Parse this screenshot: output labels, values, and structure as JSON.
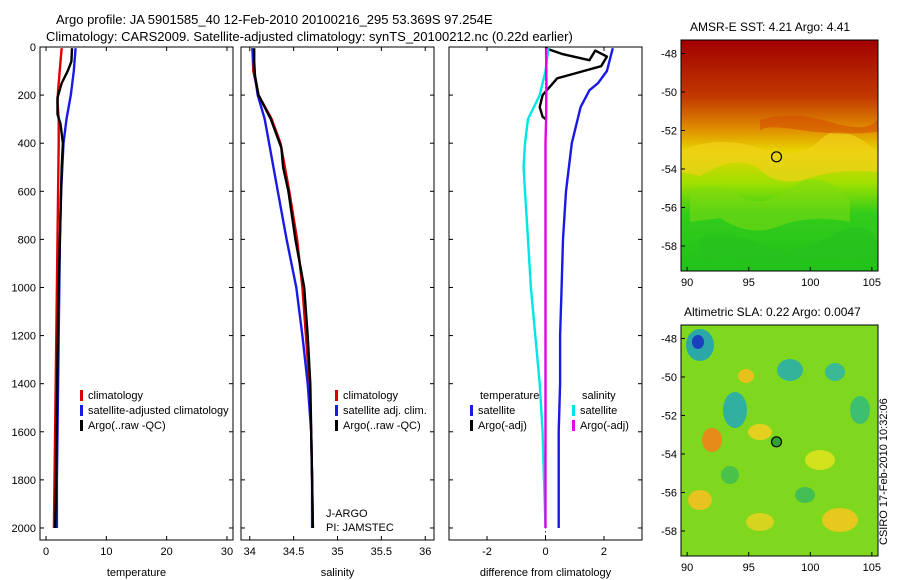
{
  "header": {
    "title_line1": "Argo profile: JA 5901585_40 12-Feb-2010 20100216_295 53.369S 97.254E",
    "title_line2": "Climatology: CARS2009. Satellite-adjusted climatology: synTS_20100212.nc (0.22d earlier)"
  },
  "footer_stamp": "CSIRO 17-Feb-2010 10:32:06",
  "colors": {
    "climatology": "#dd0000",
    "satellite": "#1a1ae6",
    "argo": "#000000",
    "satellite_salinity": "#00e5e5",
    "argo_salinity": "#e600e6"
  },
  "chart_data": [
    {
      "type": "line",
      "xlabel": "temperature",
      "ylim": [
        2050,
        0
      ],
      "xlim": [
        -1,
        31
      ],
      "x_ticks": [
        0,
        10,
        20,
        30
      ],
      "y_ticks": [
        0,
        200,
        400,
        600,
        800,
        1000,
        1200,
        1400,
        1600,
        1800,
        2000
      ],
      "legend": [
        "climatology",
        "satellite-adjusted climatology",
        "Argo(..raw -QC)"
      ],
      "series": [
        {
          "name": "climatology",
          "color_key": "climatology",
          "points": [
            [
              2.6,
              5
            ],
            [
              2.4,
              60
            ],
            [
              2.2,
              120
            ],
            [
              2.0,
              180
            ],
            [
              1.9,
              230
            ],
            [
              2.1,
              300
            ],
            [
              2.1,
              400
            ],
            [
              2.0,
              600
            ],
            [
              1.9,
              800
            ],
            [
              1.8,
              1000
            ],
            [
              1.7,
              1200
            ],
            [
              1.6,
              1400
            ],
            [
              1.5,
              1600
            ],
            [
              1.4,
              1800
            ],
            [
              1.3,
              2000
            ]
          ]
        },
        {
          "name": "satellite-adjusted climatology",
          "color_key": "satellite",
          "points": [
            [
              4.9,
              5
            ],
            [
              4.6,
              100
            ],
            [
              4.1,
              200
            ],
            [
              3.4,
              300
            ],
            [
              2.9,
              400
            ],
            [
              2.5,
              600
            ],
            [
              2.3,
              800
            ],
            [
              2.2,
              1000
            ],
            [
              2.1,
              1200
            ],
            [
              2.0,
              1400
            ],
            [
              1.9,
              1600
            ],
            [
              1.8,
              1800
            ],
            [
              1.8,
              2000
            ]
          ]
        },
        {
          "name": "Argo(..raw -QC)",
          "color_key": "argo",
          "points": [
            [
              4.3,
              5
            ],
            [
              4.2,
              60
            ],
            [
              3.6,
              100
            ],
            [
              2.6,
              150
            ],
            [
              1.9,
              210
            ],
            [
              1.9,
              280
            ],
            [
              2.4,
              320
            ],
            [
              2.8,
              400
            ],
            [
              2.6,
              500
            ],
            [
              2.4,
              700
            ],
            [
              2.2,
              900
            ],
            [
              2.0,
              1100
            ],
            [
              1.9,
              1300
            ],
            [
              1.8,
              1500
            ],
            [
              1.7,
              1700
            ],
            [
              1.6,
              1900
            ],
            [
              1.5,
              2000
            ]
          ]
        }
      ]
    },
    {
      "type": "line",
      "xlabel": "salinity",
      "ylim": [
        2050,
        0
      ],
      "xlim": [
        33.9,
        36.1
      ],
      "x_ticks": [
        34,
        34.5,
        35,
        35.5,
        36
      ],
      "legend": [
        "climatology",
        "satellite adj. clim.",
        "Argo(..raw -QC)"
      ],
      "annotations": [
        "J-ARGO",
        "PI: JAMSTEC"
      ],
      "series": [
        {
          "name": "climatology",
          "color_key": "climatology",
          "points": [
            [
              34.03,
              5
            ],
            [
              34.04,
              100
            ],
            [
              34.1,
              200
            ],
            [
              34.25,
              300
            ],
            [
              34.35,
              400
            ],
            [
              34.45,
              600
            ],
            [
              34.54,
              800
            ],
            [
              34.6,
              1000
            ],
            [
              34.64,
              1200
            ],
            [
              34.68,
              1400
            ],
            [
              34.7,
              1600
            ],
            [
              34.71,
              1800
            ],
            [
              34.72,
              2000
            ]
          ]
        },
        {
          "name": "satellite adj. clim.",
          "color_key": "satellite",
          "points": [
            [
              34.03,
              5
            ],
            [
              34.05,
              100
            ],
            [
              34.09,
              200
            ],
            [
              34.17,
              300
            ],
            [
              34.22,
              400
            ],
            [
              34.32,
              600
            ],
            [
              34.42,
              800
            ],
            [
              34.53,
              1000
            ],
            [
              34.6,
              1200
            ],
            [
              34.66,
              1400
            ],
            [
              34.7,
              1600
            ],
            [
              34.71,
              1800
            ],
            [
              34.71,
              2000
            ]
          ]
        },
        {
          "name": "Argo(..raw -QC)",
          "color_key": "argo",
          "points": [
            [
              34.05,
              5
            ],
            [
              34.05,
              60
            ],
            [
              34.06,
              120
            ],
            [
              34.1,
              200
            ],
            [
              34.24,
              300
            ],
            [
              34.36,
              420
            ],
            [
              34.38,
              500
            ],
            [
              34.44,
              600
            ],
            [
              34.52,
              800
            ],
            [
              34.62,
              1000
            ],
            [
              34.66,
              1200
            ],
            [
              34.69,
              1400
            ],
            [
              34.7,
              1600
            ],
            [
              34.71,
              1800
            ],
            [
              34.72,
              2000
            ]
          ]
        }
      ]
    },
    {
      "type": "line",
      "xlabel": "difference from climatology",
      "ylim": [
        2050,
        0
      ],
      "xlim": [
        -3.3,
        3.3
      ],
      "x_ticks": [
        -2,
        0,
        2
      ],
      "legend": [
        "temperature",
        "satellite",
        "Argo(-adj)",
        "salinity",
        "satellite",
        "Argo(-adj)"
      ],
      "series": [
        {
          "name": "satellite",
          "color_key": "satellite",
          "points": [
            [
              2.3,
              5
            ],
            [
              2.1,
              100
            ],
            [
              1.8,
              150
            ],
            [
              1.5,
              180
            ],
            [
              1.2,
              250
            ],
            [
              0.9,
              400
            ],
            [
              0.8,
              500
            ],
            [
              0.7,
              600
            ],
            [
              0.6,
              800
            ],
            [
              0.55,
              1000
            ],
            [
              0.5,
              1200
            ],
            [
              0.5,
              1400
            ],
            [
              0.45,
              1600
            ],
            [
              0.45,
              1800
            ],
            [
              0.45,
              2000
            ]
          ]
        },
        {
          "name": "Argo(-adj)",
          "color_key": "argo",
          "points": [
            [
              0.0,
              5
            ],
            [
              0.6,
              30
            ],
            [
              1.5,
              55
            ],
            [
              1.7,
              15
            ],
            [
              2.1,
              40
            ],
            [
              1.9,
              80
            ],
            [
              1.0,
              110
            ],
            [
              0.4,
              130
            ],
            [
              -0.1,
              200
            ],
            [
              -0.2,
              250
            ],
            [
              -0.1,
              290
            ],
            [
              0.0,
              300
            ]
          ]
        },
        {
          "name": "satellite",
          "color_key": "satellite_salinity",
          "points": [
            [
              0.1,
              5
            ],
            [
              0.0,
              100
            ],
            [
              -0.2,
              200
            ],
            [
              -0.6,
              300
            ],
            [
              -0.7,
              400
            ],
            [
              -0.75,
              500
            ],
            [
              -0.7,
              600
            ],
            [
              -0.6,
              800
            ],
            [
              -0.5,
              1000
            ],
            [
              -0.35,
              1200
            ],
            [
              -0.2,
              1400
            ],
            [
              -0.1,
              1600
            ],
            [
              -0.05,
              1800
            ],
            [
              0.0,
              2000
            ]
          ]
        },
        {
          "name": "Argo(-adj)",
          "color_key": "argo_salinity",
          "points": [
            [
              0.02,
              5
            ],
            [
              0.03,
              150
            ],
            [
              0.02,
              300
            ],
            [
              0.0,
              400
            ],
            [
              0.0,
              470
            ],
            [
              0.0,
              600
            ],
            [
              0.0,
              800
            ],
            [
              0.0,
              1000
            ],
            [
              0.0,
              1200
            ],
            [
              0.0,
              1400
            ],
            [
              0.0,
              1600
            ],
            [
              0.0,
              1800
            ],
            [
              0.0,
              2000
            ]
          ]
        }
      ]
    },
    {
      "type": "heatmap",
      "title": "AMSR-E SST: 4.21 Argo: 4.41",
      "xlim": [
        89.5,
        105.5
      ],
      "ylim": [
        -59.3,
        -47.3
      ],
      "x_ticks": [
        90,
        95,
        100,
        105
      ],
      "y_ticks": [
        -48,
        -50,
        -52,
        -54,
        -56,
        -58
      ],
      "marker": {
        "lon": 97.254,
        "lat": -53.369
      }
    },
    {
      "type": "heatmap",
      "title": "Altimetric SLA: 0.22 Argo: 0.0047",
      "xlim": [
        89.5,
        105.5
      ],
      "ylim": [
        -59.3,
        -47.3
      ],
      "x_ticks": [
        90,
        95,
        100,
        105
      ],
      "y_ticks": [
        -48,
        -50,
        -52,
        -54,
        -56,
        -58
      ],
      "marker": {
        "lon": 97.254,
        "lat": -53.369
      }
    }
  ]
}
